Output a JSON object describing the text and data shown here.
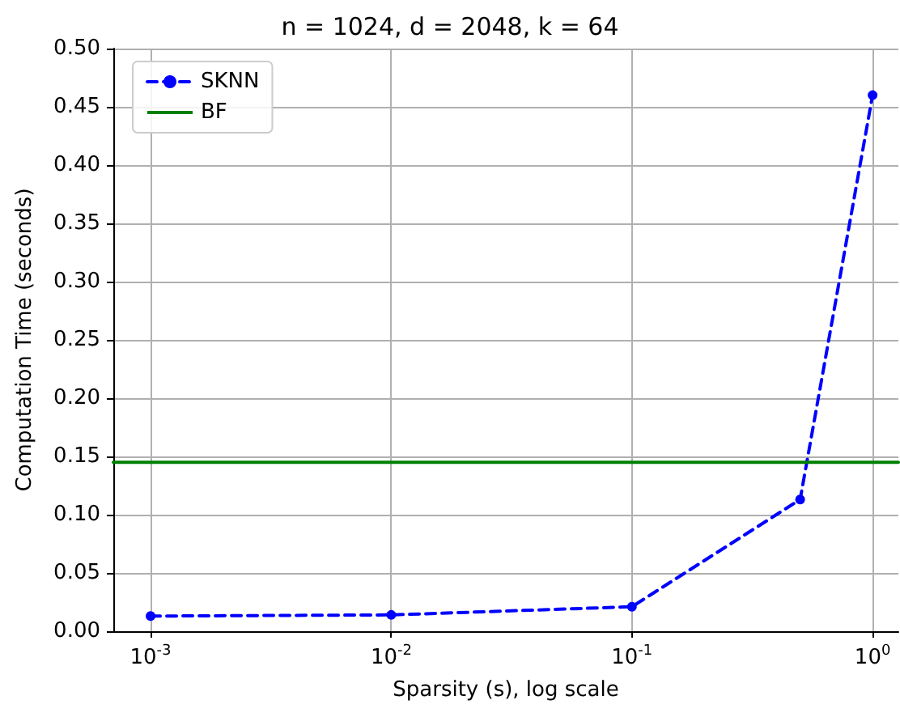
{
  "chart_data": {
    "type": "line",
    "title": "n = 1024, d = 2048, k = 64",
    "xlabel": "Sparsity (s), log scale",
    "ylabel": "Computation Time (seconds)",
    "log": "x",
    "xlim": [
      0.0007,
      1.28
    ],
    "xticks": [
      {
        "value": 0.001,
        "label": "10$^{-3}$"
      },
      {
        "value": 0.01,
        "label": "10$^{-2}$"
      },
      {
        "value": 0.1,
        "label": "10$^{-1}$"
      },
      {
        "value": 1,
        "label": "10$^{0}$"
      }
    ],
    "ylim": [
      0,
      0.5
    ],
    "yticks": [
      {
        "value": 0,
        "label": "0.00"
      },
      0.05,
      {
        "value": 0.1,
        "label": "0.10"
      },
      0.15,
      {
        "value": 0.2,
        "label": "0.20"
      },
      0.25,
      {
        "value": 0.3,
        "label": "0.30"
      },
      0.35,
      {
        "value": 0.4,
        "label": "0.40"
      },
      0.45,
      {
        "value": 0.5,
        "label": "0.50"
      }
    ],
    "series": [
      {
        "name": "SKNN",
        "color": "#0000ff",
        "x": [
          0.001,
          0.01,
          0.1,
          0.5,
          1
        ],
        "values": [
          0.013,
          0.014,
          0.021,
          0.113,
          0.46
        ],
        "marker": "circle",
        "line_style": "dashed"
      },
      {
        "name": "BF",
        "color": "#008000",
        "x": [
          0.0007,
          1.28
        ],
        "values": [
          0.145,
          0.145
        ],
        "marker": "none",
        "line_style": "solid"
      }
    ],
    "grid": true,
    "legend": "top left"
  }
}
